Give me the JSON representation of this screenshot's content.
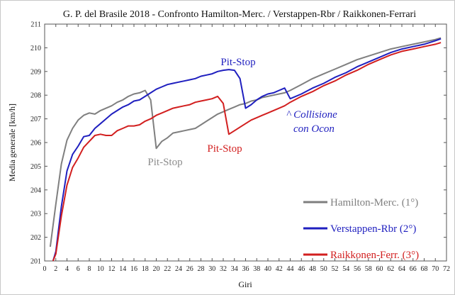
{
  "chart_data": {
    "type": "line",
    "title": "G. P. del Brasile 2018 - Confronto Hamilton-Merc. / Verstappen-Rbr / Raikkonen-Ferrari",
    "xlabel": "Giri",
    "ylabel": "Media generale  [km/h]",
    "xlim": [
      0,
      72
    ],
    "ylim": [
      201,
      211
    ],
    "xticks": [
      0,
      2,
      4,
      6,
      8,
      10,
      12,
      14,
      16,
      18,
      20,
      22,
      24,
      26,
      28,
      30,
      32,
      34,
      36,
      38,
      40,
      42,
      44,
      46,
      48,
      50,
      52,
      54,
      56,
      58,
      60,
      62,
      64,
      66,
      68,
      70,
      72
    ],
    "yticks": [
      201,
      202,
      203,
      204,
      205,
      206,
      207,
      208,
      209,
      210,
      211
    ],
    "grid": false,
    "legend_position": "bottom-right",
    "series": [
      {
        "name": "Hamilton-Merc. (1°)",
        "color": "#7f7f7f",
        "x": [
          1,
          2,
          3,
          4,
          5,
          6,
          7,
          8,
          9,
          10,
          11,
          12,
          13,
          14,
          15,
          16,
          17,
          18,
          19,
          20,
          21,
          22,
          23,
          24,
          25,
          26,
          27,
          28,
          29,
          30,
          31,
          32,
          33,
          34,
          35,
          36,
          37,
          38,
          39,
          40,
          41,
          42,
          43,
          44,
          46,
          48,
          50,
          52,
          54,
          56,
          58,
          60,
          62,
          64,
          66,
          68,
          70,
          71
        ],
        "values": [
          201.6,
          203.4,
          205.1,
          206.1,
          206.6,
          206.95,
          207.15,
          207.25,
          207.2,
          207.35,
          207.45,
          207.55,
          207.7,
          207.8,
          207.95,
          208.05,
          208.1,
          208.2,
          207.8,
          205.75,
          206.05,
          206.2,
          206.4,
          206.45,
          206.5,
          206.55,
          206.6,
          206.75,
          206.9,
          207.05,
          207.2,
          207.3,
          207.4,
          207.5,
          207.6,
          207.65,
          207.75,
          207.8,
          207.9,
          207.95,
          208.0,
          208.05,
          208.1,
          208.2,
          208.45,
          208.7,
          208.9,
          209.1,
          209.3,
          209.5,
          209.65,
          209.8,
          209.95,
          210.05,
          210.15,
          210.25,
          210.35,
          210.42
        ]
      },
      {
        "name": "Verstappen-Rbr (2°)",
        "color": "#1f1fbf",
        "x": [
          1.5,
          2,
          3,
          4,
          5,
          6,
          7,
          8,
          9,
          10,
          11,
          12,
          13,
          14,
          15,
          16,
          17,
          18,
          19,
          20,
          21,
          22,
          23,
          24,
          25,
          26,
          27,
          28,
          29,
          30,
          31,
          32,
          33,
          34,
          35,
          36,
          37,
          38,
          39,
          40,
          41,
          42,
          43,
          44,
          46,
          48,
          50,
          52,
          54,
          56,
          58,
          60,
          62,
          64,
          66,
          68,
          70,
          71
        ],
        "values": [
          201.0,
          201.4,
          203.3,
          204.8,
          205.5,
          205.85,
          206.25,
          206.3,
          206.6,
          206.8,
          207.0,
          207.2,
          207.35,
          207.5,
          207.6,
          207.75,
          207.8,
          207.95,
          208.1,
          208.25,
          208.35,
          208.45,
          208.5,
          208.55,
          208.6,
          208.65,
          208.7,
          208.8,
          208.85,
          208.9,
          209.0,
          209.05,
          209.08,
          209.05,
          208.7,
          207.45,
          207.6,
          207.8,
          207.95,
          208.05,
          208.1,
          208.2,
          208.3,
          207.85,
          208.05,
          208.3,
          208.5,
          208.75,
          208.95,
          209.2,
          209.4,
          209.6,
          209.8,
          209.95,
          210.05,
          210.15,
          210.3,
          210.38
        ]
      },
      {
        "name": "Raikkonen-Ferr. (3°)",
        "color": "#d21f1f",
        "x": [
          1.5,
          2,
          3,
          4,
          5,
          6,
          7,
          8,
          9,
          10,
          11,
          12,
          13,
          14,
          15,
          16,
          17,
          18,
          19,
          20,
          21,
          22,
          23,
          24,
          25,
          26,
          27,
          28,
          29,
          30,
          31,
          32,
          33,
          34,
          35,
          36,
          37,
          38,
          39,
          40,
          41,
          42,
          43,
          44,
          46,
          48,
          50,
          52,
          54,
          56,
          58,
          60,
          62,
          64,
          66,
          68,
          70,
          71
        ],
        "values": [
          201.0,
          201.3,
          202.9,
          204.2,
          204.95,
          205.35,
          205.8,
          206.05,
          206.3,
          206.35,
          206.3,
          206.3,
          206.5,
          206.6,
          206.7,
          206.7,
          206.75,
          206.9,
          207.0,
          207.15,
          207.25,
          207.35,
          207.45,
          207.5,
          207.55,
          207.6,
          207.7,
          207.75,
          207.8,
          207.85,
          207.95,
          207.65,
          206.35,
          206.5,
          206.65,
          206.8,
          206.95,
          207.05,
          207.15,
          207.25,
          207.35,
          207.45,
          207.55,
          207.7,
          207.95,
          208.15,
          208.4,
          208.6,
          208.85,
          209.05,
          209.3,
          209.5,
          209.7,
          209.85,
          209.95,
          210.05,
          210.15,
          210.22
        ]
      }
    ],
    "annotations": {
      "hamilton_pit": "Pit-Stop",
      "verstappen_pit": "Pit-Stop",
      "raikkonen_pit": "Pit-Stop",
      "collision_line1": "^ Collisione",
      "collision_line2": "con Ocon"
    }
  }
}
